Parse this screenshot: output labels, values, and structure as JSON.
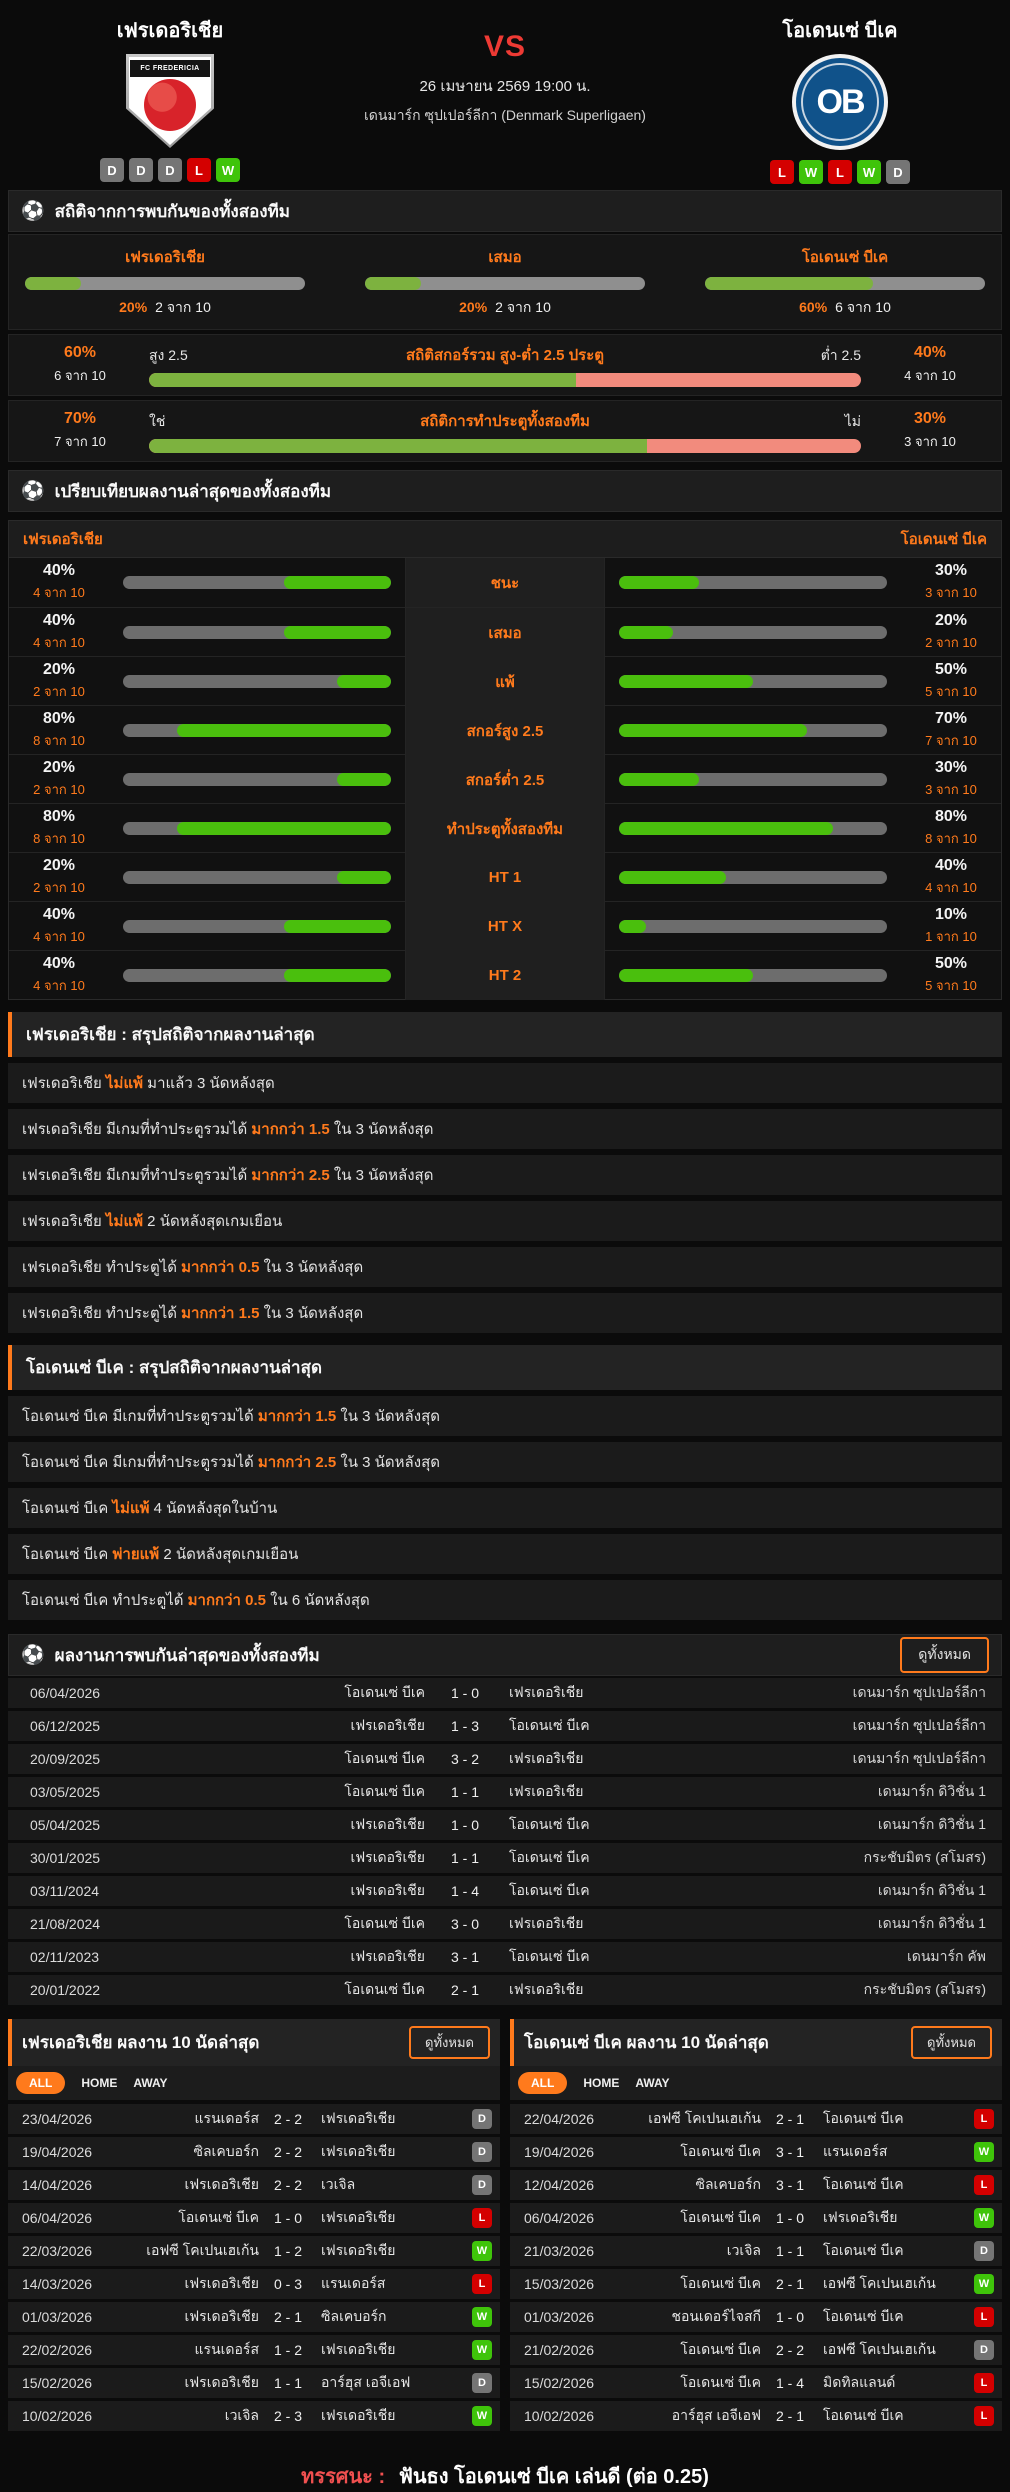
{
  "colors": {
    "accent": "#ff7a1c",
    "green_bar": "#4abf0d",
    "green_soft": "#7db23f",
    "salmon": "#f28b7d",
    "win": "#3fc40a",
    "loss": "#d40000",
    "draw": "#757575",
    "vs_red": "#ee3a34"
  },
  "header": {
    "home_team": "เฟรเดอริเชีย",
    "away_team": "โอเดนเซ่ บีเค",
    "home_logo_text": "FC FREDERICIA",
    "away_logo_text": "OB",
    "vs_label": "VS",
    "datetime": "26 เมษายน 2569 19:00 น.",
    "league": "เดนมาร์ก ซุปเปอร์ลีกา (Denmark Superligaen)",
    "home_form": [
      "D",
      "D",
      "D",
      "L",
      "W"
    ],
    "away_form": [
      "L",
      "W",
      "L",
      "W",
      "D"
    ]
  },
  "h2h_stats": {
    "title": "สถิติจากการพบกันของทั้งสองทีม",
    "outcome": [
      {
        "label": "เฟรเดอริเชีย",
        "pct": "20%",
        "count": "2 จาก 10",
        "value": 20
      },
      {
        "label": "เสมอ",
        "pct": "20%",
        "count": "2 จาก 10",
        "value": 20
      },
      {
        "label": "โอเดนเซ่ บีเค",
        "pct": "60%",
        "count": "6 จาก 10",
        "value": 60
      }
    ],
    "over_under": {
      "title": "สถิติสกอร์รวม สูง-ต่ำ 2.5 ประตู",
      "left_label": "สูง 2.5",
      "right_label": "ต่ำ 2.5",
      "left_pct": "60%",
      "left_count": "6 จาก 10",
      "right_pct": "40%",
      "right_count": "4 จาก 10",
      "left_value": 60
    },
    "btts": {
      "title": "สถิติการทำประตูทั้งสองทีม",
      "left_label": "ใช่",
      "right_label": "ไม่",
      "left_pct": "70%",
      "left_count": "7 จาก 10",
      "right_pct": "30%",
      "right_count": "3 จาก 10",
      "left_value": 70
    }
  },
  "comparison": {
    "title": "เปรียบเทียบผลงานล่าสุดของทั้งสองทีม",
    "home_team": "เฟรเดอริเชีย",
    "away_team": "โอเดนเซ่ บีเค",
    "rows": [
      {
        "label": "ชนะ",
        "home_pct": "40%",
        "home_count": "4 จาก 10",
        "home_value": 40,
        "away_pct": "30%",
        "away_count": "3 จาก 10",
        "away_value": 30
      },
      {
        "label": "เสมอ",
        "home_pct": "40%",
        "home_count": "4 จาก 10",
        "home_value": 40,
        "away_pct": "20%",
        "away_count": "2 จาก 10",
        "away_value": 20
      },
      {
        "label": "แพ้",
        "home_pct": "20%",
        "home_count": "2 จาก 10",
        "home_value": 20,
        "away_pct": "50%",
        "away_count": "5 จาก 10",
        "away_value": 50
      },
      {
        "label": "สกอร์สูง 2.5",
        "home_pct": "80%",
        "home_count": "8 จาก 10",
        "home_value": 80,
        "away_pct": "70%",
        "away_count": "7 จาก 10",
        "away_value": 70
      },
      {
        "label": "สกอร์ต่ำ 2.5",
        "home_pct": "20%",
        "home_count": "2 จาก 10",
        "home_value": 20,
        "away_pct": "30%",
        "away_count": "3 จาก 10",
        "away_value": 30
      },
      {
        "label": "ทำประตูทั้งสองทีม",
        "home_pct": "80%",
        "home_count": "8 จาก 10",
        "home_value": 80,
        "away_pct": "80%",
        "away_count": "8 จาก 10",
        "away_value": 80
      },
      {
        "label": "HT 1",
        "home_pct": "20%",
        "home_count": "2 จาก 10",
        "home_value": 20,
        "away_pct": "40%",
        "away_count": "4 จาก 10",
        "away_value": 40
      },
      {
        "label": "HT X",
        "home_pct": "40%",
        "home_count": "4 จาก 10",
        "home_value": 40,
        "away_pct": "10%",
        "away_count": "1 จาก 10",
        "away_value": 10
      },
      {
        "label": "HT 2",
        "home_pct": "40%",
        "home_count": "4 จาก 10",
        "home_value": 40,
        "away_pct": "50%",
        "away_count": "5 จาก 10",
        "away_value": 50
      }
    ]
  },
  "home_summary": {
    "title": "เฟรเดอริเชีย : สรุปสถิติจากผลงานล่าสุด",
    "rows": [
      {
        "pre": "เฟรเดอริเชีย ",
        "hl": "ไม่แพ้",
        "post": " มาแล้ว 3 นัดหลังสุด"
      },
      {
        "pre": "เฟรเดอริเชีย  มีเกมที่ทำประตูรวมได้ ",
        "hl": "มากกว่า 1.5",
        "post": " ใน 3 นัดหลังสุด"
      },
      {
        "pre": "เฟรเดอริเชีย  มีเกมที่ทำประตูรวมได้ ",
        "hl": "มากกว่า 2.5",
        "post": " ใน 3 นัดหลังสุด"
      },
      {
        "pre": "เฟรเดอริเชีย ",
        "hl": "ไม่แพ้",
        "post": " 2  นัดหลังสุดเกมเยือน"
      },
      {
        "pre": "เฟรเดอริเชีย  ทำประตูได้ ",
        "hl": "มากกว่า 0.5",
        "post": " ใน 3 นัดหลังสุด"
      },
      {
        "pre": "เฟรเดอริเชีย  ทำประตูได้ ",
        "hl": "มากกว่า 1.5",
        "post": " ใน 3 นัดหลังสุด"
      }
    ]
  },
  "away_summary": {
    "title": "โอเดนเซ่ บีเค : สรุปสถิติจากผลงานล่าสุด",
    "rows": [
      {
        "pre": "โอเดนเซ่ บีเค  มีเกมที่ทำประตูรวมได้ ",
        "hl": "มากกว่า 1.5",
        "post": " ใน 3 นัดหลังสุด"
      },
      {
        "pre": "โอเดนเซ่ บีเค  มีเกมที่ทำประตูรวมได้ ",
        "hl": "มากกว่า 2.5",
        "post": " ใน 3 นัดหลังสุด"
      },
      {
        "pre": "โอเดนเซ่ บีเค ",
        "hl": "ไม่แพ้",
        "post": " 4  นัดหลังสุดในบ้าน"
      },
      {
        "pre": "โอเดนเซ่ บีเค ",
        "hl": "พ่ายแพ้",
        "post": " 2  นัดหลังสุดเกมเยือน"
      },
      {
        "pre": "โอเดนเซ่ บีเค  ทำประตูได้ ",
        "hl": "มากกว่า 0.5",
        "post": " ใน 6 นัดหลังสุด"
      }
    ]
  },
  "h2h_matches": {
    "title": "ผลงานการพบกันล่าสุดของทั้งสองทีม",
    "view_all": "ดูทั้งหมด",
    "rows": [
      {
        "date": "06/04/2026",
        "home": "โอเดนเซ่ บีเค",
        "score": "1 - 0",
        "away": "เฟรเดอริเชีย",
        "league": "เดนมาร์ก ซุปเปอร์ลีกา"
      },
      {
        "date": "06/12/2025",
        "home": "เฟรเดอริเชีย",
        "score": "1 - 3",
        "away": "โอเดนเซ่ บีเค",
        "league": "เดนมาร์ก ซุปเปอร์ลีกา"
      },
      {
        "date": "20/09/2025",
        "home": "โอเดนเซ่ บีเค",
        "score": "3 - 2",
        "away": "เฟรเดอริเชีย",
        "league": "เดนมาร์ก ซุปเปอร์ลีกา"
      },
      {
        "date": "03/05/2025",
        "home": "โอเดนเซ่ บีเค",
        "score": "1 - 1",
        "away": "เฟรเดอริเชีย",
        "league": "เดนมาร์ก ดิวิชั่น 1"
      },
      {
        "date": "05/04/2025",
        "home": "เฟรเดอริเชีย",
        "score": "1 - 0",
        "away": "โอเดนเซ่ บีเค",
        "league": "เดนมาร์ก ดิวิชั่น 1"
      },
      {
        "date": "30/01/2025",
        "home": "เฟรเดอริเชีย",
        "score": "1 - 1",
        "away": "โอเดนเซ่ บีเค",
        "league": "กระชับมิตร (สโมสร)"
      },
      {
        "date": "03/11/2024",
        "home": "เฟรเดอริเชีย",
        "score": "1 - 4",
        "away": "โอเดนเซ่ บีเค",
        "league": "เดนมาร์ก ดิวิชั่น 1"
      },
      {
        "date": "21/08/2024",
        "home": "โอเดนเซ่ บีเค",
        "score": "3 - 0",
        "away": "เฟรเดอริเชีย",
        "league": "เดนมาร์ก ดิวิชั่น 1"
      },
      {
        "date": "02/11/2023",
        "home": "เฟรเดอริเชีย",
        "score": "3 - 1",
        "away": "โอเดนเซ่ บีเค",
        "league": "เดนมาร์ก คัพ"
      },
      {
        "date": "20/01/2022",
        "home": "โอเดนเซ่ บีเค",
        "score": "2 - 1",
        "away": "เฟรเดอริเชีย",
        "league": "กระชับมิตร (สโมสร)"
      }
    ]
  },
  "recent_form": {
    "tabs": [
      "ALL",
      "HOME",
      "AWAY"
    ],
    "active_tab": "ALL",
    "view_all": "ดูทั้งหมด",
    "home": {
      "title": "เฟรเดอริเชีย ผลงาน 10 นัดล่าสุด",
      "rows": [
        {
          "date": "23/04/2026",
          "home": "แรนเดอร์ส",
          "score": "2 - 2",
          "away": "เฟรเดอริเชีย",
          "result": "D"
        },
        {
          "date": "19/04/2026",
          "home": "ซิลเคบอร์ก",
          "score": "2 - 2",
          "away": "เฟรเดอริเชีย",
          "result": "D"
        },
        {
          "date": "14/04/2026",
          "home": "เฟรเดอริเชีย",
          "score": "2 - 2",
          "away": "เวเจิล",
          "result": "D"
        },
        {
          "date": "06/04/2026",
          "home": "โอเดนเซ่ บีเค",
          "score": "1 - 0",
          "away": "เฟรเดอริเชีย",
          "result": "L"
        },
        {
          "date": "22/03/2026",
          "home": "เอฟซี โคเปนเฮเก้น",
          "score": "1 - 2",
          "away": "เฟรเดอริเชีย",
          "result": "W"
        },
        {
          "date": "14/03/2026",
          "home": "เฟรเดอริเชีย",
          "score": "0 - 3",
          "away": "แรนเดอร์ส",
          "result": "L"
        },
        {
          "date": "01/03/2026",
          "home": "เฟรเดอริเชีย",
          "score": "2 - 1",
          "away": "ซิลเคบอร์ก",
          "result": "W"
        },
        {
          "date": "22/02/2026",
          "home": "แรนเดอร์ส",
          "score": "1 - 2",
          "away": "เฟรเดอริเชีย",
          "result": "W"
        },
        {
          "date": "15/02/2026",
          "home": "เฟรเดอริเชีย",
          "score": "1 - 1",
          "away": "อาร์ฮุส เอจีเอฟ",
          "result": "D"
        },
        {
          "date": "10/02/2026",
          "home": "เวเจิล",
          "score": "2 - 3",
          "away": "เฟรเดอริเชีย",
          "result": "W"
        }
      ]
    },
    "away": {
      "title": "โอเดนเซ่ บีเค ผลงาน 10 นัดล่าสุด",
      "rows": [
        {
          "date": "22/04/2026",
          "home": "เอฟซี โคเปนเฮเก้น",
          "score": "2 - 1",
          "away": "โอเดนเซ่ บีเค",
          "result": "L"
        },
        {
          "date": "19/04/2026",
          "home": "โอเดนเซ่ บีเค",
          "score": "3 - 1",
          "away": "แรนเดอร์ส",
          "result": "W"
        },
        {
          "date": "12/04/2026",
          "home": "ซิลเคบอร์ก",
          "score": "3 - 1",
          "away": "โอเดนเซ่ บีเค",
          "result": "L"
        },
        {
          "date": "06/04/2026",
          "home": "โอเดนเซ่ บีเค",
          "score": "1 - 0",
          "away": "เฟรเดอริเชีย",
          "result": "W"
        },
        {
          "date": "21/03/2026",
          "home": "เวเจิล",
          "score": "1 - 1",
          "away": "โอเดนเซ่ บีเค",
          "result": "D"
        },
        {
          "date": "15/03/2026",
          "home": "โอเดนเซ่ บีเค",
          "score": "2 - 1",
          "away": "เอฟซี โคเปนเฮเก้น",
          "result": "W"
        },
        {
          "date": "01/03/2026",
          "home": "ชอนเดอร์ไจสกี",
          "score": "1 - 0",
          "away": "โอเดนเซ่ บีเค",
          "result": "L"
        },
        {
          "date": "21/02/2026",
          "home": "โอเดนเซ่ บีเค",
          "score": "2 - 2",
          "away": "เอฟซี โคเปนเฮเก้น",
          "result": "D"
        },
        {
          "date": "15/02/2026",
          "home": "โอเดนเซ่ บีเค",
          "score": "1 - 4",
          "away": "มิดทิลแลนด์",
          "result": "L"
        },
        {
          "date": "10/02/2026",
          "home": "อาร์ฮุส เอจีเอฟ",
          "score": "2 - 1",
          "away": "โอเดนเซ่ บีเค",
          "result": "L"
        }
      ]
    }
  },
  "verdict": {
    "prefix": "ทรรศนะ :",
    "text": "ฟันธง โอเดนเซ่ บีเค เล่นดี (ต่อ 0.25)"
  }
}
